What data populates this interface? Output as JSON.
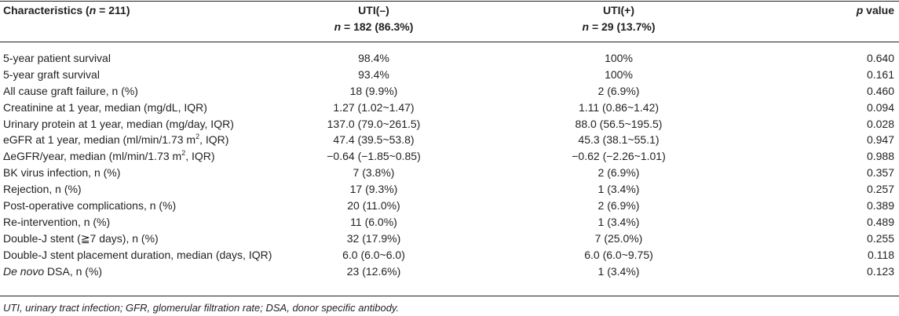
{
  "header": {
    "characteristics_prefix": "Characteristics (",
    "characteristics_n": "n",
    "characteristics_suffix": " = 211)",
    "uti_neg_label": "UTI(–)",
    "uti_neg_n": "n",
    "uti_neg_count": " = 182 (86.3%)",
    "uti_pos_label": "UTI(+)",
    "uti_pos_n": "n",
    "uti_pos_count": " = 29 (13.7%)",
    "p_italic": "p",
    "p_suffix": " value"
  },
  "rows": [
    {
      "label": "5-year patient survival",
      "neg": "98.4%",
      "pos": "100%",
      "p": "0.640"
    },
    {
      "label": "5-year graft survival",
      "neg": "93.4%",
      "pos": "100%",
      "p": "0.161"
    },
    {
      "label": "All cause graft failure, n (%)",
      "neg": "18 (9.9%)",
      "pos": "2 (6.9%)",
      "p": "0.460"
    },
    {
      "label": "Creatinine at 1 year, median (mg/dL, IQR)",
      "neg": "1.27 (1.02~1.47)",
      "pos": "1.11 (0.86~1.42)",
      "p": "0.094"
    },
    {
      "label": "Urinary protein at 1 year, median (mg/day, IQR)",
      "neg": "137.0 (79.0~261.5)",
      "pos": "88.0 (56.5~195.5)",
      "p": "0.028"
    },
    {
      "label_pre": "eGFR at 1 year, median (ml/min/1.73 m",
      "label_sup": "2",
      "label_post": ", IQR)",
      "neg": "47.4 (39.5~53.8)",
      "pos": "45.3 (38.1~55.1)",
      "p": "0.947"
    },
    {
      "label_pre": "ΔeGFR/year, median (ml/min/1.73 m",
      "label_sup": "2",
      "label_post": ", IQR)",
      "neg": "−0.64 (−1.85~0.85)",
      "pos": "−0.62 (−2.26~1.01)",
      "p": "0.988"
    },
    {
      "label": "BK virus infection, n (%)",
      "neg": "7 (3.8%)",
      "pos": "2 (6.9%)",
      "p": "0.357"
    },
    {
      "label": "Rejection, n (%)",
      "neg": "17 (9.3%)",
      "pos": "1 (3.4%)",
      "p": "0.257"
    },
    {
      "label": "Post-operative complications, n (%)",
      "neg": "20 (11.0%)",
      "pos": "2 (6.9%)",
      "p": "0.389"
    },
    {
      "label": "Re-intervention, n (%)",
      "neg": "11 (6.0%)",
      "pos": "1 (3.4%)",
      "p": "0.489"
    },
    {
      "label": "Double-J stent (≧7 days), n (%)",
      "neg": "32 (17.9%)",
      "pos": "7 (25.0%)",
      "p": "0.255"
    },
    {
      "label": "Double-J stent placement duration, median (days, IQR)",
      "neg": "6.0 (6.0~6.0)",
      "pos": "6.0 (6.0~9.75)",
      "p": "0.118"
    },
    {
      "label_italic": "De novo",
      "label_post": " DSA, n (%)",
      "neg": "23 (12.6%)",
      "pos": "1 (3.4%)",
      "p": "0.123"
    }
  ],
  "footnote": "UTI, urinary tract infection; GFR, glomerular filtration rate; DSA, donor specific antibody."
}
